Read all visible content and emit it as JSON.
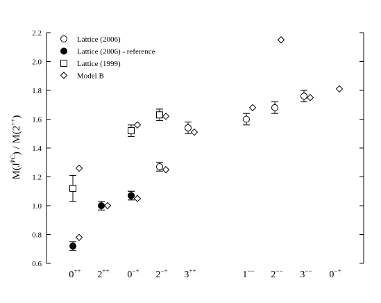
{
  "chart_data": {
    "type": "scatter",
    "ylabel": {
      "prefix": "M(J",
      "sup1": "PC",
      "middle": ") / M(2",
      "sup2": "++",
      "suffix": ")"
    },
    "ylim": [
      0.6,
      2.2
    ],
    "yticks": [
      "0.6",
      "0.8",
      "1.0",
      "1.2",
      "1.4",
      "1.6",
      "1.8",
      "2.0",
      "2.2"
    ],
    "grid": false,
    "legend_position": "top-left",
    "categories": [
      {
        "base": "0",
        "sup": "++"
      },
      {
        "base": "2",
        "sup": "++"
      },
      {
        "base": "0",
        "sup": "−+"
      },
      {
        "base": "2",
        "sup": "−+"
      },
      {
        "base": "3",
        "sup": "++"
      },
      {
        "base": "1",
        "sup": "−−"
      },
      {
        "base": "2",
        "sup": "−−"
      },
      {
        "base": "3",
        "sup": "−−"
      },
      {
        "base": "0",
        "sup": "−+"
      }
    ],
    "series": [
      {
        "name": "Lattice (2006)",
        "marker": "open-circle",
        "points": [
          {
            "category": 2,
            "y": 1.07,
            "err": 0.03
          },
          {
            "category": 3,
            "y": 1.27,
            "err": 0.03
          },
          {
            "category": 4,
            "y": 1.54,
            "err": 0.04
          },
          {
            "category": 5,
            "y": 1.6,
            "err": 0.04
          },
          {
            "category": 6,
            "y": 1.68,
            "err": 0.04
          },
          {
            "category": 7,
            "y": 1.76,
            "err": 0.04
          }
        ]
      },
      {
        "name": "Lattice (2006) - reference",
        "marker": "filled-circle",
        "points": [
          {
            "category": 0,
            "y": 0.72,
            "err": 0.03
          },
          {
            "category": 1,
            "y": 1.0,
            "err": 0.03
          },
          {
            "category": 2,
            "y": 1.07,
            "err": 0.03
          }
        ]
      },
      {
        "name": "Lattice (1999)",
        "marker": "open-square",
        "points": [
          {
            "category": 0,
            "y": 1.12,
            "err": 0.09
          },
          {
            "category": 2,
            "y": 1.52,
            "err": 0.04
          },
          {
            "category": 3,
            "y": 1.63,
            "err": 0.04
          }
        ]
      },
      {
        "name": "Model B",
        "marker": "open-diamond",
        "points": [
          {
            "category": 0,
            "y": 0.78
          },
          {
            "category": 0,
            "y": 1.26
          },
          {
            "category": 1,
            "y": 1.0
          },
          {
            "category": 2,
            "y": 1.05
          },
          {
            "category": 2,
            "y": 1.56
          },
          {
            "category": 3,
            "y": 1.25
          },
          {
            "category": 3,
            "y": 1.62
          },
          {
            "category": 4,
            "y": 1.51
          },
          {
            "category": 5,
            "y": 1.68
          },
          {
            "category": 6,
            "y": 2.15
          },
          {
            "category": 7,
            "y": 1.75
          },
          {
            "category": 8,
            "y": 1.81
          }
        ]
      }
    ]
  }
}
